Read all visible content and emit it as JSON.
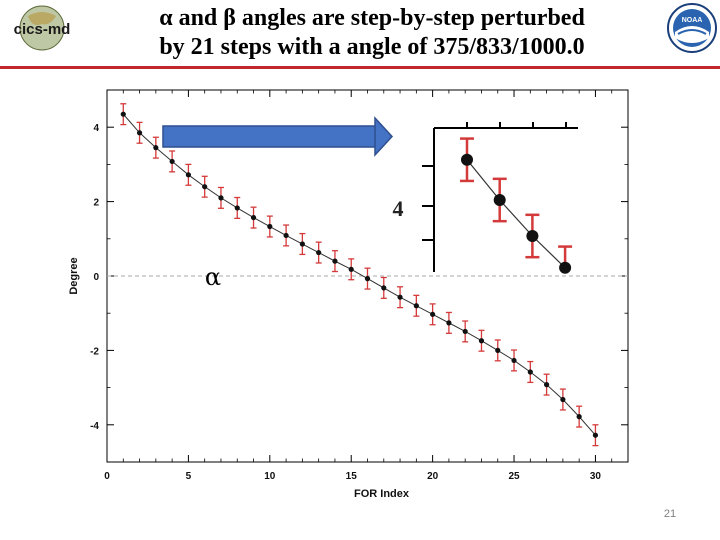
{
  "header": {
    "title_line1": "α and β angles are step-by-step perturbed",
    "title_line2": "by 21 steps with a angle of 375/833/1000.0",
    "left_logo_text": "cics-md",
    "right_logo_text": "NOAA"
  },
  "annotations": {
    "inset_tick_label": "4",
    "alpha_symbol": "α"
  },
  "slide_number": "21",
  "colors": {
    "title_rule": "#c0282b",
    "error_bar": "#d43a3a",
    "arrow_fill": "#4472c4",
    "arrow_border": "#2f4f8f"
  },
  "chart_data": {
    "type": "line",
    "xlabel": "FOR Index",
    "ylabel": "Degree",
    "xlim": [
      0,
      32
    ],
    "ylim": [
      -5,
      5
    ],
    "xticks": [
      0,
      5,
      10,
      15,
      20,
      25,
      30
    ],
    "yticks": [
      -4,
      -2,
      0,
      2,
      4
    ],
    "grid": false,
    "series": [
      {
        "x": [
          1,
          2,
          3,
          4,
          5,
          6,
          7,
          8,
          9,
          10,
          11,
          12,
          13,
          14,
          15,
          16,
          17,
          18,
          19,
          20,
          21,
          22,
          23,
          24,
          25,
          26,
          27,
          28,
          29,
          30
        ],
        "values": [
          4.35,
          3.85,
          3.45,
          3.08,
          2.72,
          2.4,
          2.1,
          1.83,
          1.57,
          1.33,
          1.09,
          0.86,
          0.63,
          0.4,
          0.18,
          -0.07,
          -0.32,
          -0.57,
          -0.8,
          -1.03,
          -1.26,
          -1.49,
          -1.74,
          -2.0,
          -2.27,
          -2.58,
          -2.92,
          -3.32,
          -3.78,
          -4.28
        ],
        "error": 0.28
      }
    ],
    "zero_line": true,
    "inset": {
      "x": [
        1,
        2,
        3,
        4
      ],
      "values": [
        2.65,
        1.7,
        0.85,
        0.1
      ]
    }
  }
}
